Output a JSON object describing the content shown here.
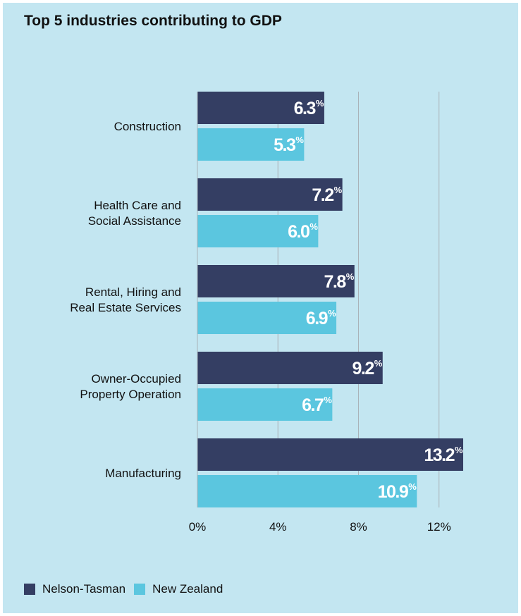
{
  "title": "Top 5 industries contributing to GDP",
  "colors": {
    "background": "#c3e6f1",
    "nelson_tasman": "#343e63",
    "new_zealand": "#5bc6df",
    "gridline": "#a9b2b8",
    "text": "#111111",
    "bar_label": "#ffffff"
  },
  "legend": [
    {
      "label": "Nelson-Tasman",
      "color": "#343e63"
    },
    {
      "label": "New Zealand",
      "color": "#5bc6df"
    }
  ],
  "chart_data": {
    "type": "bar",
    "orientation": "horizontal",
    "title": "Top 5 industries contributing to GDP",
    "categories": [
      [
        "Construction"
      ],
      [
        "Health Care and",
        "Social Assistance"
      ],
      [
        "Rental, Hiring and",
        "Real Estate Services"
      ],
      [
        "Owner-Occupied",
        "Property Operation"
      ],
      [
        "Manufacturing"
      ]
    ],
    "series": [
      {
        "name": "Nelson-Tasman",
        "values": [
          6.3,
          7.2,
          7.8,
          9.2,
          13.2
        ],
        "labels": [
          "6.3",
          "7.2",
          "7.8",
          "9.2",
          "13.2"
        ]
      },
      {
        "name": "New Zealand",
        "values": [
          5.3,
          6.0,
          6.9,
          6.7,
          10.9
        ],
        "labels": [
          "5.3",
          "6.0",
          "6.9",
          "6.7",
          "10.9"
        ]
      }
    ],
    "value_suffix": "%",
    "xlim": [
      0,
      13.2
    ],
    "xticks": [
      0,
      4,
      8,
      12
    ],
    "xtick_labels": [
      "0%",
      "4%",
      "8%",
      "12%"
    ],
    "grid": true,
    "legend_position": "bottom-left",
    "xlabel": "",
    "ylabel": ""
  }
}
